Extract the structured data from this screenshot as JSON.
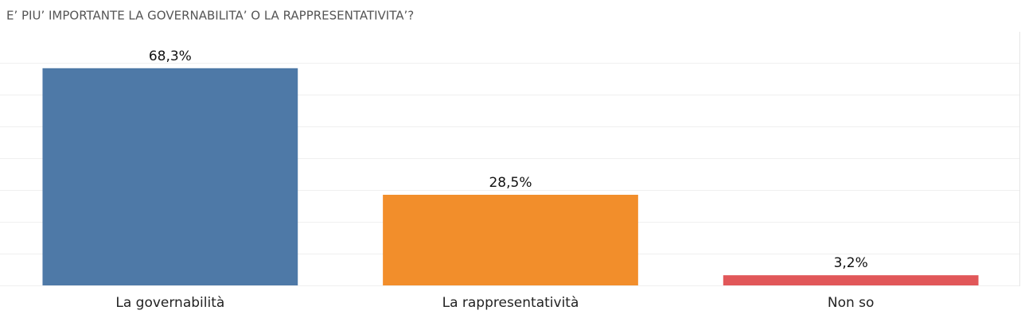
{
  "chart_data": {
    "type": "bar",
    "title": "E’ PIU’ IMPORTANTE LA GOVERNABILITA’ O LA RAPPRESENTATIVITA’?",
    "categories": [
      "La governabilità",
      "La rappresentatività",
      "Non so"
    ],
    "values": [
      68.3,
      28.5,
      3.2
    ],
    "value_labels": [
      "68,3%",
      "28,5%",
      "3,2%"
    ],
    "colors": [
      "#4e79a7",
      "#f28e2b",
      "#e15759"
    ],
    "ylim": [
      0,
      80
    ],
    "yticks": [
      0,
      10,
      20,
      30,
      40,
      50,
      60,
      70
    ],
    "grid": true
  }
}
